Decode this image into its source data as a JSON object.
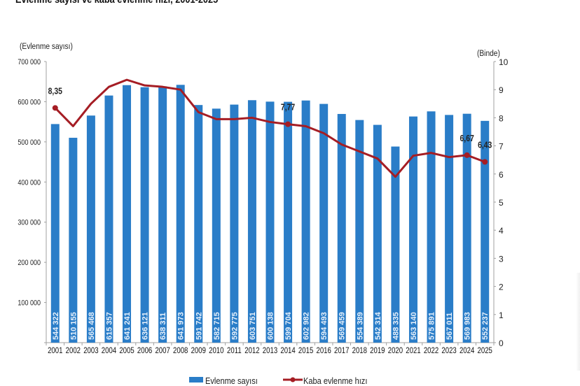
{
  "chart_data": {
    "type": "bar+line",
    "title": "Evlenme sayısı ve kaba evlenme hızı, 2001-2025",
    "ylabel_left": "(Evlenme sayısı)",
    "ylabel_right": "(Binde)",
    "xlabel": "",
    "ylim_left": [
      0,
      700000
    ],
    "ylim_right": [
      0,
      10
    ],
    "yticks_left": [
      "",
      "100 000",
      "200 000",
      "300 000",
      "400 000",
      "500 000",
      "600 000",
      "700 000"
    ],
    "yticks_right": [
      "0",
      "1",
      "2",
      "3",
      "4",
      "5",
      "6",
      "7",
      "8",
      "9",
      "10"
    ],
    "grid": false,
    "legend_position": "bottom",
    "categories": [
      "2001",
      "2002",
      "2003",
      "2004",
      "2005",
      "2006",
      "2007",
      "2008",
      "2009",
      "2010",
      "2011",
      "2012",
      "2013",
      "2014",
      "2015",
      "2016",
      "2017",
      "2018",
      "2019",
      "2020",
      "2021",
      "2022",
      "2023",
      "2024",
      "2025"
    ],
    "series": [
      {
        "name": "Evlenme sayısı",
        "type": "bar",
        "axis": "left",
        "color": "#2a7dc8",
        "values": [
          544322,
          510155,
          565468,
          615357,
          641241,
          636121,
          638311,
          641973,
          591742,
          582715,
          592775,
          603751,
          600138,
          599704,
          602982,
          594493,
          569459,
          554389,
          542314,
          488335,
          563140,
          575891,
          567011,
          569983,
          552237
        ],
        "value_labels": [
          "544 322",
          "510 155",
          "565 468",
          "615 357",
          "641 241",
          "636 121",
          "638 311",
          "641 973",
          "591 742",
          "582 715",
          "592 775",
          "603 751",
          "600 138",
          "599 704",
          "602 982",
          "594 493",
          "569 459",
          "554 389",
          "542 314",
          "488 335",
          "563 140",
          "575 891",
          "567 011",
          "569 983",
          "552 237"
        ]
      },
      {
        "name": "Kaba evlenme hızı",
        "type": "line",
        "axis": "right",
        "color": "#a51d24",
        "values": [
          8.35,
          7.7,
          8.5,
          9.1,
          9.35,
          9.15,
          9.1,
          9.0,
          8.2,
          7.95,
          7.95,
          8.0,
          7.85,
          7.77,
          7.7,
          7.45,
          7.05,
          6.8,
          6.55,
          5.9,
          6.65,
          6.75,
          6.6,
          6.67,
          6.43
        ],
        "annotations": [
          {
            "category": "2001",
            "label": "8,35"
          },
          {
            "category": "2014",
            "label": "7,77"
          },
          {
            "category": "2024",
            "label": "6,67"
          },
          {
            "category": "2025",
            "label": "6,43"
          }
        ]
      }
    ]
  }
}
